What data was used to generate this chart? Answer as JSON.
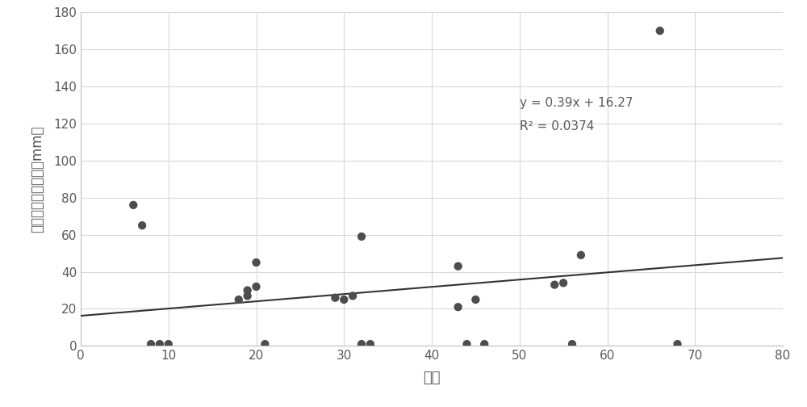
{
  "x": [
    6,
    7,
    8,
    9,
    10,
    18,
    19,
    19,
    20,
    20,
    21,
    29,
    30,
    31,
    32,
    32,
    33,
    43,
    43,
    44,
    45,
    46,
    54,
    55,
    56,
    57,
    66,
    68
  ],
  "y": [
    76,
    65,
    1,
    1,
    1,
    25,
    27,
    30,
    32,
    45,
    1,
    26,
    25,
    27,
    59,
    1,
    1,
    21,
    43,
    1,
    25,
    1,
    33,
    34,
    1,
    49,
    170,
    1
  ],
  "slope": 0.39,
  "intercept": 16.27,
  "r2": 0.0374,
  "x_line_start": 0,
  "x_line_end": 80,
  "xlabel": "序列",
  "ylabel": "分离月成分降液量（mm）",
  "xlim": [
    0,
    80
  ],
  "ylim": [
    0,
    180
  ],
  "xticks": [
    0,
    10,
    20,
    30,
    40,
    50,
    60,
    70,
    80
  ],
  "yticks": [
    0,
    20,
    40,
    60,
    80,
    100,
    120,
    140,
    160,
    180
  ],
  "dot_color": "#4d4d4d",
  "line_color": "#333333",
  "dot_size": 55,
  "equation_text": "y = 0.39x + 16.27",
  "r2_text": "R² = 0.0374",
  "eq_x": 50,
  "eq_y": 128,
  "text_color": "#595959",
  "tick_color": "#595959",
  "label_color": "#595959",
  "background_color": "#ffffff",
  "grid_color": "#d9d9d9",
  "spine_color": "#bfbfbf"
}
